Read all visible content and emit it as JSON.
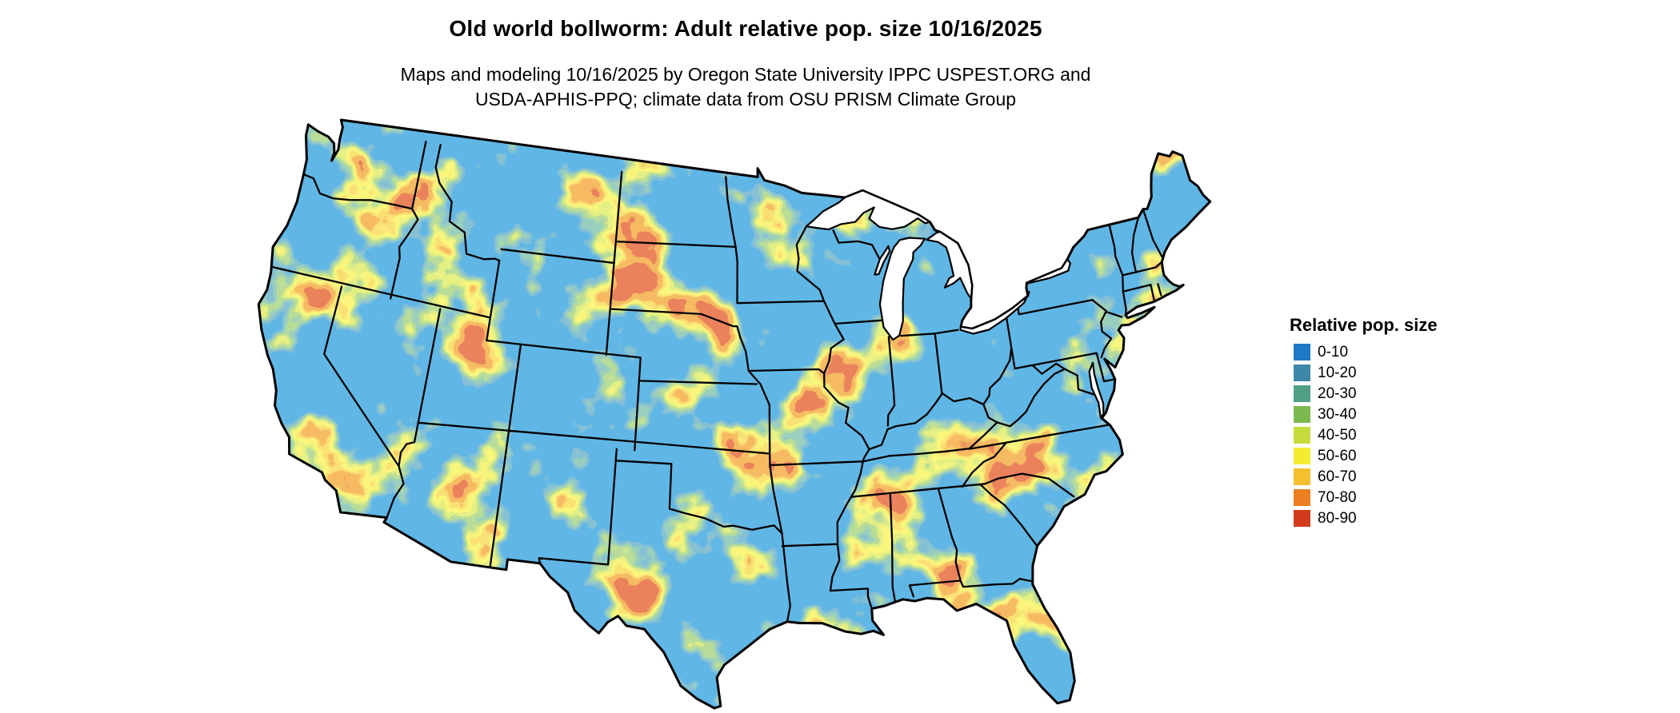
{
  "title": "Old world bollworm: Adult relative pop. size 10/16/2025",
  "subtitle_line1": "Maps and modeling 10/16/2025 by Oregon State University IPPC USPEST.ORG and",
  "subtitle_line2": "USDA-APHIS-PPQ; climate data from OSU PRISM Climate Group",
  "legend": {
    "title": "Relative pop. size",
    "entries": [
      {
        "label": "0-10",
        "color": "#1E78C8"
      },
      {
        "label": "10-20",
        "color": "#3E87A8"
      },
      {
        "label": "20-30",
        "color": "#52A084"
      },
      {
        "label": "30-40",
        "color": "#7CBA50"
      },
      {
        "label": "40-50",
        "color": "#C5DC3C"
      },
      {
        "label": "50-60",
        "color": "#F4EC33"
      },
      {
        "label": "60-70",
        "color": "#F4C02E"
      },
      {
        "label": "70-80",
        "color": "#EC7F20"
      },
      {
        "label": "80-90",
        "color": "#D13A1B"
      }
    ]
  },
  "map": {
    "area": "Contiguous United States",
    "outline_color": "#000000",
    "water_color": "#ffffff"
  }
}
